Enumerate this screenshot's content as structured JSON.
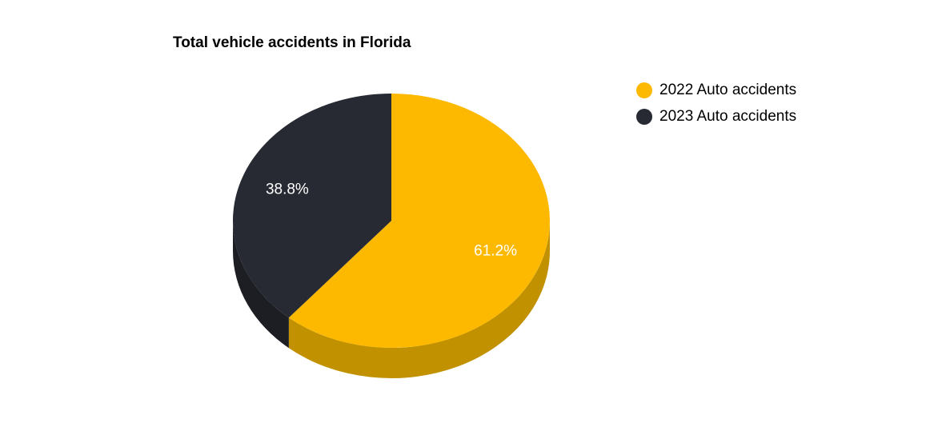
{
  "chart_data": {
    "type": "pie",
    "title": "Total vehicle accidents in Florida",
    "legend_position": "top-right",
    "slices": [
      {
        "label": "2022 Auto accidents",
        "value": 61.2,
        "value_label": "61.2%",
        "color": "#FDB900",
        "side_color": "#C19100"
      },
      {
        "label": "2023 Auto accidents",
        "value": 38.8,
        "value_label": "38.8%",
        "color": "#272A32",
        "side_color": "#1C1E24"
      }
    ]
  }
}
